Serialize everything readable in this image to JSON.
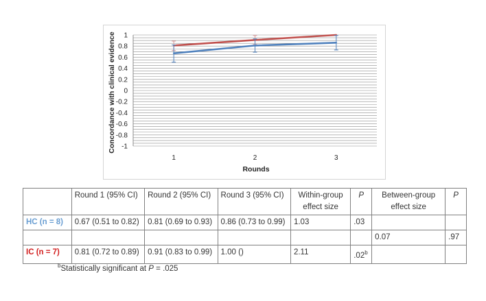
{
  "chart_data": {
    "type": "line",
    "x": [
      1,
      2,
      3
    ],
    "xlabel": "Rounds",
    "ylabel": "Concordance with clinical evidence",
    "ylim": [
      -1,
      1
    ],
    "yticks": [
      "1",
      "0.8",
      "0.6",
      "0.4",
      "0.2",
      "0",
      "-0.2",
      "-0.4",
      "-0.6",
      "-0.8",
      "-1"
    ],
    "xticks": [
      "1",
      "2",
      "3"
    ],
    "grid": true,
    "series": [
      {
        "values": [
          0.81,
          0.91,
          1.0
        ],
        "ci_low": [
          0.72,
          0.83,
          1.0
        ],
        "ci_high": [
          0.89,
          0.99,
          1.0
        ],
        "color": "#c0504d"
      },
      {
        "values": [
          0.67,
          0.81,
          0.86
        ],
        "ci_low": [
          0.51,
          0.69,
          0.73
        ],
        "ci_high": [
          0.82,
          0.93,
          0.99
        ],
        "color": "#4f81bd"
      }
    ]
  },
  "table": {
    "header": {
      "round1": "Round 1 (95% CI)",
      "round2": "Round 2 (95% CI)",
      "round3": "Round 3 (95% CI)",
      "within": "Within-group effect size",
      "p": "P",
      "between": "Between-group effect size",
      "p2": "P"
    },
    "hc": {
      "label": "HC (n = 8)",
      "round1": "0.67 (0.51 to 0.82)",
      "round2": "0.81 (0.69 to 0.93)",
      "round3": "0.86 (0.73 to 0.99)",
      "within": "1.03",
      "p": ".03"
    },
    "between": {
      "effect": "0.07",
      "p": ".97"
    },
    "ic": {
      "label": "IC (n = 7)",
      "round1": "0.81 (0.72 to 0.89)",
      "round2": "0.91 (0.83 to 0.99)",
      "round3": "1.00 ()",
      "within": "2.11",
      "p": ".02",
      "p_sup": "b"
    }
  },
  "footnote": {
    "marker": "b",
    "text": "Statistically significant at ",
    "p": "P",
    "value": " = .025"
  }
}
